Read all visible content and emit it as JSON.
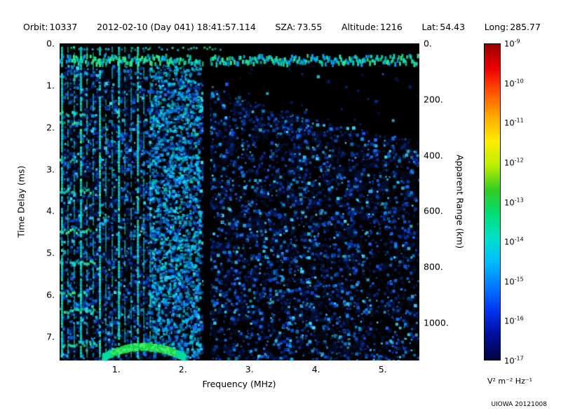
{
  "header": {
    "orbit_label": "Orbit:",
    "orbit_value": "10337",
    "datetime_value": "2012-02-10 (Day 041) 18:41:57.114",
    "sza_label": "SZA:",
    "sza_value": "73.55",
    "altitude_label": "Altitude:",
    "altitude_value": "1216",
    "lat_label": "Lat:",
    "lat_value": "54.43",
    "long_label": "Long:",
    "long_value": "285.77"
  },
  "watermark": "UIOWA 20121008",
  "chart_data": {
    "type": "heatmap",
    "subtype": "radar-sounder-ionogram-spectrogram",
    "title": "",
    "xlabel": "Frequency (MHz)",
    "ylabel_left": "Time Delay (ms)",
    "ylabel_right": "Apparent Range (km)",
    "x_range": [
      0.15,
      5.55
    ],
    "x_ticks": [
      1,
      2,
      3,
      4,
      5
    ],
    "x_tick_labels": [
      "1.",
      "2.",
      "3.",
      "4.",
      "5."
    ],
    "y_range": [
      0,
      7.57
    ],
    "y_ticks": [
      0,
      1,
      2,
      3,
      4,
      5,
      6,
      7
    ],
    "y_tick_labels": [
      "0.",
      "1.",
      "2.",
      "3.",
      "4.",
      "5.",
      "6.",
      "7."
    ],
    "y2_ticks_km": [
      0,
      200,
      400,
      600,
      800,
      1000
    ],
    "y2_tick_labels": [
      "0.",
      "200.",
      "400.",
      "600.",
      "800.",
      "1000."
    ],
    "km_per_ms": 150,
    "grid": false,
    "colorbar": {
      "unit_label": "V² m⁻² Hz⁻¹",
      "base": "10",
      "tick_exponents": [
        "-9",
        "-10",
        "-11",
        "-12",
        "-13",
        "-14",
        "-15",
        "-16",
        "-17"
      ],
      "gradient": [
        "#990000",
        "#ee0000",
        "#ff5500",
        "#ffaa00",
        "#ffee00",
        "#bbee00",
        "#33cc22",
        "#00dd77",
        "#00e0cc",
        "#00bbff",
        "#0077ff",
        "#0033ee",
        "#000d99",
        "#000540"
      ]
    },
    "features": {
      "seed": 1337,
      "bg_color": "#000000",
      "echo_boundary": {
        "points_f": [
          0.15,
          1.6,
          2.0,
          2.5,
          3.0,
          3.5,
          4.0,
          4.5,
          5.0,
          5.55
        ],
        "points_t": [
          0.5,
          0.55,
          0.8,
          1.05,
          1.35,
          1.6,
          1.8,
          2.0,
          2.15,
          2.3
        ]
      },
      "soft_blobs": {
        "count": 700,
        "color": "#0a2f96",
        "alpha": 0.16,
        "size_min": 5,
        "size_max": 13
      },
      "speckle": {
        "count": 15000,
        "palette": [
          "#021240",
          "#02206e",
          "#0233a8",
          "#074bd8",
          "#1a6bff",
          "#00a2ff",
          "#3fd9ff"
        ],
        "size_min": 2,
        "size_max": 5
      },
      "plasma_harmonics": {
        "f_start": 0.18,
        "spacing": 0.095,
        "f_end": 1.55,
        "bright_every": 3,
        "color": "#00e0d0",
        "color2": "#35f08c"
      },
      "top_edge": {
        "t_center": 0.1,
        "f_max": 2.6,
        "prob": 0.55,
        "color": "#00b4e8",
        "color2": "#2ae08c"
      },
      "top_band": {
        "t_center": 0.38,
        "t_half": 0.1,
        "colors": [
          "#00dcc8",
          "#2ef08e",
          "#00a6ff"
        ]
      },
      "left_bands": {
        "f_min": 0.15,
        "f_max": 0.75,
        "t_list": [
          1.65,
          1.85,
          2.75,
          3.5,
          4.45,
          5.2,
          5.95,
          6.35,
          7.15
        ],
        "color": "#18e0c0",
        "color2": "#3cee8a"
      },
      "cyan_column": {
        "f_min": 1.5,
        "f_max": 2.25,
        "count": 2600,
        "density": 0.55,
        "palette": [
          "#00a8ff",
          "#00d2ff",
          "#0b76ee",
          "#00e6d2"
        ]
      },
      "notch": {
        "f_center": 2.36,
        "half_width": 0.05,
        "t_start": 0.18
      },
      "ground_arc": {
        "f_center": 1.4,
        "f_half": 0.62,
        "t_top": 7.22,
        "curv": 0.26,
        "thickness": 0.16,
        "count": 950,
        "colors": [
          "#10d24a",
          "#4cee6e",
          "#00dca0"
        ]
      }
    }
  }
}
